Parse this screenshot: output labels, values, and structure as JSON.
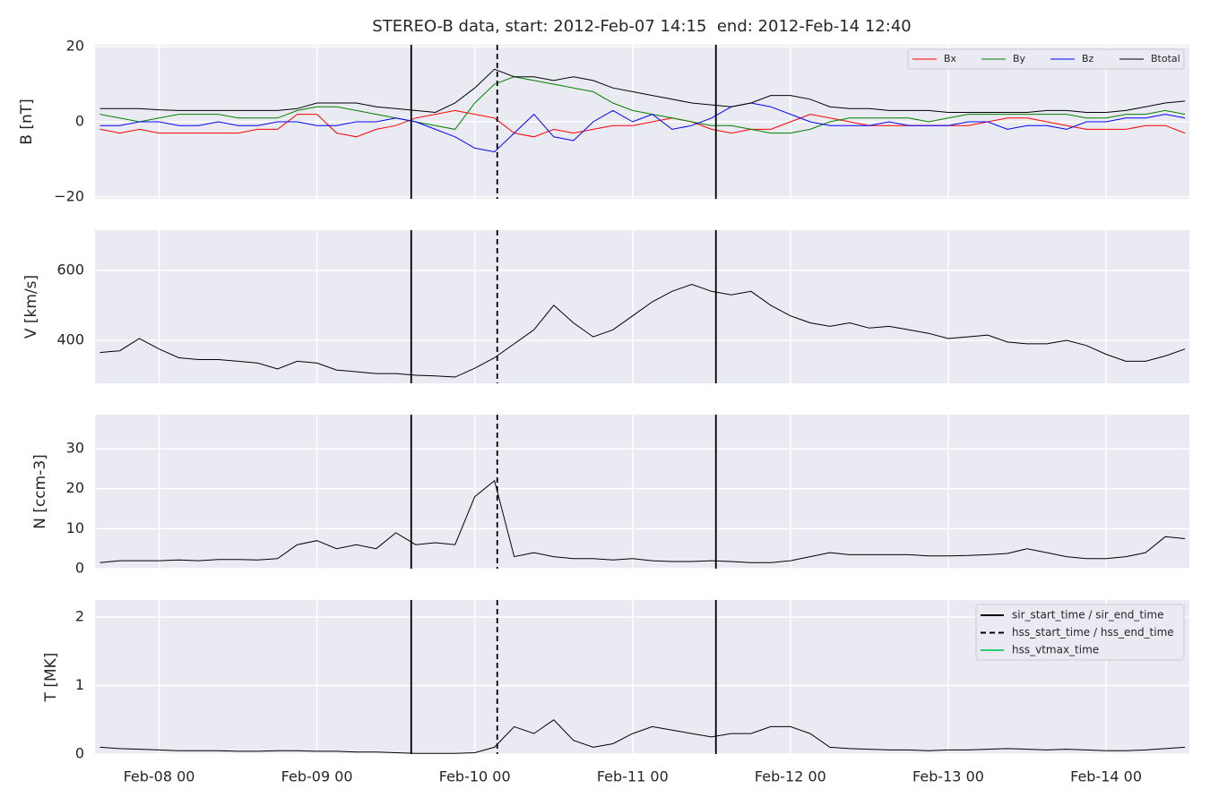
{
  "chart_data": {
    "type": "line",
    "title": "STEREO-B data, start: 2012-Feb-07 14:15  end: 2012-Feb-14 12:40",
    "xlim": [
      "2012-02-07 14:15",
      "2012-02-14 12:40"
    ],
    "xticks": [
      {
        "value": "2012-02-08 00:00",
        "label": "Feb-08 00"
      },
      {
        "value": "2012-02-09 00:00",
        "label": "Feb-09 00"
      },
      {
        "value": "2012-02-10 00:00",
        "label": "Feb-10 00"
      },
      {
        "value": "2012-02-11 00:00",
        "label": "Feb-11 00"
      },
      {
        "value": "2012-02-12 00:00",
        "label": "Feb-12 00"
      },
      {
        "value": "2012-02-13 00:00",
        "label": "Feb-13 00"
      },
      {
        "value": "2012-02-14 00:00",
        "label": "Feb-14 00"
      }
    ],
    "grid": true,
    "x": [
      "2012-02-07 15:00",
      "2012-02-07 18:00",
      "2012-02-07 21:00",
      "2012-02-08 00:00",
      "2012-02-08 03:00",
      "2012-02-08 06:00",
      "2012-02-08 09:00",
      "2012-02-08 12:00",
      "2012-02-08 15:00",
      "2012-02-08 18:00",
      "2012-02-08 21:00",
      "2012-02-09 00:00",
      "2012-02-09 03:00",
      "2012-02-09 06:00",
      "2012-02-09 09:00",
      "2012-02-09 12:00",
      "2012-02-09 15:00",
      "2012-02-09 18:00",
      "2012-02-09 21:00",
      "2012-02-10 00:00",
      "2012-02-10 03:00",
      "2012-02-10 06:00",
      "2012-02-10 09:00",
      "2012-02-10 12:00",
      "2012-02-10 15:00",
      "2012-02-10 18:00",
      "2012-02-10 21:00",
      "2012-02-11 00:00",
      "2012-02-11 03:00",
      "2012-02-11 06:00",
      "2012-02-11 09:00",
      "2012-02-11 12:00",
      "2012-02-11 15:00",
      "2012-02-11 18:00",
      "2012-02-11 21:00",
      "2012-02-12 00:00",
      "2012-02-12 03:00",
      "2012-02-12 06:00",
      "2012-02-12 09:00",
      "2012-02-12 12:00",
      "2012-02-12 15:00",
      "2012-02-12 18:00",
      "2012-02-12 21:00",
      "2012-02-13 00:00",
      "2012-02-13 03:00",
      "2012-02-13 06:00",
      "2012-02-13 09:00",
      "2012-02-13 12:00",
      "2012-02-13 15:00",
      "2012-02-13 18:00",
      "2012-02-13 21:00",
      "2012-02-14 00:00",
      "2012-02-14 03:00",
      "2012-02-14 06:00",
      "2012-02-14 09:00",
      "2012-02-14 12:00"
    ],
    "event_lines": [
      {
        "x": "2012-02-09 14:20",
        "style": "solid",
        "color": "#000000"
      },
      {
        "x": "2012-02-10 03:25",
        "style": "dashed",
        "color": "#000000"
      },
      {
        "x": "2012-02-11 12:40",
        "style": "solid",
        "color": "#000000"
      }
    ],
    "event_legend": [
      {
        "label": "sir_start_time / sir_end_time",
        "style": "solid",
        "color": "#000000"
      },
      {
        "label": "hss_start_time / hss_end_time",
        "style": "dashed",
        "color": "#000000"
      },
      {
        "label": "hss_vtmax_time",
        "style": "solid",
        "color": "#2ecc71"
      }
    ],
    "panels": [
      {
        "ylabel": "B [nT]",
        "ylim": [
          -20.5,
          20.5
        ],
        "yticks": [
          {
            "value": -20,
            "label": "−20"
          },
          0,
          20
        ],
        "legend": "upper right",
        "series": [
          {
            "name": "Bx",
            "color": "#ff0000",
            "values": [
              -2,
              -3,
              -2,
              -3,
              -3,
              -3,
              -3,
              -3,
              -2,
              -2,
              2,
              2,
              -3,
              -4,
              -2,
              -1,
              1,
              2,
              3,
              2,
              1,
              -3,
              -4,
              -2,
              -3,
              -2,
              -1,
              -1,
              0,
              1,
              0,
              -2,
              -3,
              -2,
              -2,
              0,
              2,
              1,
              0,
              -1,
              -1,
              -1,
              -1,
              -1,
              -1,
              0,
              1,
              1,
              0,
              -1,
              -2,
              -2,
              -2,
              -1,
              -1,
              -3
            ]
          },
          {
            "name": "By",
            "color": "#008000",
            "values": [
              2,
              1,
              0,
              1,
              2,
              2,
              2,
              1,
              1,
              1,
              3,
              4,
              4,
              3,
              2,
              1,
              0,
              -1,
              -2,
              5,
              10,
              12,
              11,
              10,
              9,
              8,
              5,
              3,
              2,
              1,
              0,
              -1,
              -1,
              -2,
              -3,
              -3,
              -2,
              0,
              1,
              1,
              1,
              1,
              0,
              1,
              2,
              2,
              2,
              2,
              2,
              2,
              1,
              1,
              2,
              2,
              3,
              2
            ]
          },
          {
            "name": "Bz",
            "color": "#0000ff",
            "values": [
              -1,
              -1,
              0,
              0,
              -1,
              -1,
              0,
              -1,
              -1,
              0,
              0,
              -1,
              -1,
              0,
              0,
              1,
              0,
              -2,
              -4,
              -7,
              -8,
              -3,
              2,
              -4,
              -5,
              0,
              3,
              0,
              2,
              -2,
              -1,
              1,
              4,
              5,
              4,
              2,
              0,
              -1,
              -1,
              -1,
              0,
              -1,
              -1,
              -1,
              0,
              0,
              -2,
              -1,
              -1,
              -2,
              0,
              0,
              1,
              1,
              2,
              1
            ]
          },
          {
            "name": "Btotal",
            "color": "#000000",
            "values": [
              3.5,
              3.5,
              3.5,
              3.2,
              3,
              3,
              3,
              3,
              3,
              3,
              3.5,
              5,
              5,
              5,
              4,
              3.5,
              3,
              2.5,
              5,
              9,
              14,
              12,
              12,
              11,
              12,
              11,
              9,
              8,
              7,
              6,
              5,
              4.5,
              4,
              5,
              7,
              7,
              6,
              4,
              3.5,
              3.5,
              3,
              3,
              3,
              2.5,
              2.5,
              2.5,
              2.5,
              2.5,
              3,
              3,
              2.5,
              2.5,
              3,
              4,
              5,
              5.5
            ]
          }
        ]
      },
      {
        "ylabel": "V [km/s]",
        "ylim": [
          277,
          715
        ],
        "yticks": [
          400,
          600
        ],
        "series": [
          {
            "color": "#000000",
            "values": [
              365,
              370,
              405,
              375,
              350,
              345,
              345,
              340,
              335,
              318,
              340,
              335,
              315,
              310,
              305,
              305,
              300,
              298,
              295,
              320,
              350,
              390,
              430,
              500,
              450,
              410,
              430,
              470,
              510,
              540,
              560,
              540,
              530,
              540,
              500,
              470,
              450,
              440,
              450,
              435,
              440,
              430,
              420,
              405,
              410,
              415,
              395,
              390,
              390,
              400,
              385,
              360,
              340,
              340,
              355,
              375
            ]
          }
        ]
      },
      {
        "ylabel": "N [ccm-3]",
        "ylim": [
          0,
          38.5
        ],
        "yticks": [
          0,
          10,
          20,
          30
        ],
        "series": [
          {
            "color": "#000000",
            "values": [
              1.5,
              2,
              2,
              2,
              2.2,
              2,
              2.3,
              2.3,
              2.2,
              2.5,
              6,
              7,
              5,
              6,
              5,
              9,
              6,
              6.5,
              6,
              18,
              22,
              3,
              4,
              3,
              2.5,
              2.5,
              2.2,
              2.5,
              2,
              1.8,
              1.8,
              2,
              1.8,
              1.5,
              1.5,
              2,
              3,
              4,
              3.5,
              3.5,
              3.5,
              3.5,
              3.2,
              3.2,
              3.3,
              3.5,
              3.8,
              5,
              4,
              3,
              2.5,
              2.5,
              3,
              4,
              8,
              7.5
            ]
          }
        ]
      },
      {
        "ylabel": "T [MK]",
        "ylim": [
          0,
          2.25
        ],
        "yticks": [
          0,
          1,
          2
        ],
        "legend": "upper right",
        "series": [
          {
            "color": "#000000",
            "values": [
              0.1,
              0.08,
              0.07,
              0.06,
              0.05,
              0.05,
              0.05,
              0.04,
              0.04,
              0.05,
              0.05,
              0.04,
              0.04,
              0.03,
              0.03,
              0.02,
              0.01,
              0.01,
              0.01,
              0.02,
              0.1,
              0.4,
              0.3,
              0.5,
              0.2,
              0.1,
              0.15,
              0.3,
              0.4,
              0.35,
              0.3,
              0.25,
              0.3,
              0.3,
              0.4,
              0.4,
              0.3,
              0.1,
              0.08,
              0.07,
              0.06,
              0.06,
              0.05,
              0.06,
              0.06,
              0.07,
              0.08,
              0.07,
              0.06,
              0.07,
              0.06,
              0.05,
              0.05,
              0.06,
              0.08,
              0.1
            ]
          }
        ]
      }
    ]
  }
}
